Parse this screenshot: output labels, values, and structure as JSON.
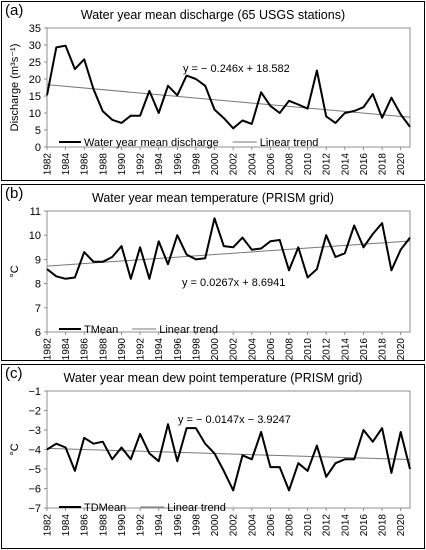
{
  "chart_data": [
    {
      "type": "line",
      "panel_label": "(a)",
      "title": "Water year mean discharge (65 USGS stations)",
      "ylabel": "Discharge (m³s⁻¹)",
      "ylim": [
        0,
        35
      ],
      "yticks": [
        0,
        5,
        10,
        15,
        20,
        25,
        30,
        35
      ],
      "xlim": [
        1982,
        2021
      ],
      "xticks": [
        1982,
        1984,
        1986,
        1988,
        1990,
        1992,
        1994,
        1996,
        1998,
        2000,
        2002,
        2004,
        2006,
        2008,
        2010,
        2012,
        2014,
        2016,
        2018,
        2020
      ],
      "x": [
        1982,
        1983,
        1984,
        1985,
        1986,
        1987,
        1988,
        1989,
        1990,
        1991,
        1992,
        1993,
        1994,
        1995,
        1996,
        1997,
        1998,
        1999,
        2000,
        2001,
        2002,
        2003,
        2004,
        2005,
        2006,
        2007,
        2008,
        2009,
        2010,
        2011,
        2012,
        2013,
        2014,
        2015,
        2016,
        2017,
        2018,
        2019,
        2020,
        2021
      ],
      "series": [
        {
          "name": "Water year mean discharge",
          "values": [
            15.2,
            29.3,
            29.8,
            22.9,
            25.8,
            17.0,
            10.5,
            8.0,
            7.1,
            9.2,
            9.2,
            16.5,
            10.0,
            18.0,
            15.2,
            21.0,
            20.0,
            18.0,
            11.0,
            8.5,
            5.5,
            7.8,
            6.8,
            16.1,
            12.1,
            10.0,
            13.6,
            12.5,
            11.3,
            22.5,
            9.0,
            7.1,
            10.0,
            10.6,
            11.7,
            15.6,
            8.6,
            14.5,
            9.6,
            5.9
          ]
        }
      ],
      "trend": {
        "name": "Linear trend",
        "equation": "y = − 0.246x + 18.582",
        "slope": -0.246,
        "intercept": 18.582
      },
      "legend_position": "bottom-left",
      "grid": false
    },
    {
      "type": "line",
      "panel_label": "(b)",
      "title": "Water year mean temperature (PRISM grid)",
      "ylabel": "°C",
      "ylim": [
        6,
        11
      ],
      "yticks": [
        6,
        7,
        8,
        9,
        10,
        11
      ],
      "xlim": [
        1982,
        2021
      ],
      "xticks": [
        1982,
        1984,
        1986,
        1988,
        1990,
        1992,
        1994,
        1996,
        1998,
        2000,
        2002,
        2004,
        2006,
        2008,
        2010,
        2012,
        2014,
        2016,
        2018,
        2020
      ],
      "x": [
        1982,
        1983,
        1984,
        1985,
        1986,
        1987,
        1988,
        1989,
        1990,
        1991,
        1992,
        1993,
        1994,
        1995,
        1996,
        1997,
        1998,
        1999,
        2000,
        2001,
        2002,
        2003,
        2004,
        2005,
        2006,
        2007,
        2008,
        2009,
        2010,
        2011,
        2012,
        2013,
        2014,
        2015,
        2016,
        2017,
        2018,
        2019,
        2020,
        2021
      ],
      "series": [
        {
          "name": "TMean",
          "values": [
            8.6,
            8.3,
            8.2,
            8.25,
            9.3,
            8.9,
            8.9,
            9.1,
            9.55,
            8.2,
            9.5,
            8.2,
            9.75,
            8.8,
            10.0,
            9.2,
            9.0,
            9.05,
            10.7,
            9.55,
            9.5,
            9.9,
            9.4,
            9.45,
            9.75,
            9.8,
            8.55,
            9.5,
            8.25,
            8.6,
            10.0,
            9.1,
            9.25,
            10.4,
            9.5,
            10.05,
            10.5,
            8.55,
            9.4,
            9.9
          ]
        }
      ],
      "trend": {
        "name": "Linear trend",
        "equation": "y = 0.0267x + 8.6941",
        "slope": 0.0267,
        "intercept": 8.6941
      },
      "legend_position": "bottom-left",
      "grid": false
    },
    {
      "type": "line",
      "panel_label": "(c)",
      "title": "Water year mean dew point temperature (PRISM grid)",
      "ylabel": "°C",
      "ylim": [
        -7,
        -1
      ],
      "yticks": [
        -7,
        -6,
        -5,
        -4,
        -3,
        -2,
        -1
      ],
      "xlim": [
        1982,
        2021
      ],
      "xticks": [
        1982,
        1984,
        1986,
        1988,
        1990,
        1992,
        1994,
        1996,
        1998,
        2000,
        2002,
        2004,
        2006,
        2008,
        2010,
        2012,
        2014,
        2016,
        2018,
        2020
      ],
      "x": [
        1982,
        1983,
        1984,
        1985,
        1986,
        1987,
        1988,
        1989,
        1990,
        1991,
        1992,
        1993,
        1994,
        1995,
        1996,
        1997,
        1998,
        1999,
        2000,
        2001,
        2002,
        2003,
        2004,
        2005,
        2006,
        2007,
        2008,
        2009,
        2010,
        2011,
        2012,
        2013,
        2014,
        2015,
        2016,
        2017,
        2018,
        2019,
        2020,
        2021
      ],
      "series": [
        {
          "name": "TDMean",
          "values": [
            -4.0,
            -3.7,
            -3.9,
            -5.1,
            -3.4,
            -3.7,
            -3.6,
            -4.5,
            -3.9,
            -4.5,
            -3.2,
            -4.2,
            -4.6,
            -2.7,
            -4.6,
            -2.9,
            -2.9,
            -3.7,
            -4.2,
            -5.1,
            -6.1,
            -4.3,
            -4.5,
            -3.1,
            -4.9,
            -4.9,
            -6.1,
            -4.7,
            -5.1,
            -3.8,
            -5.4,
            -4.7,
            -4.5,
            -4.5,
            -3.0,
            -3.6,
            -2.9,
            -5.2,
            -3.1,
            -5.0
          ]
        }
      ],
      "trend": {
        "name": "Linear trend",
        "equation": "y = − 0.0147x − 3.9247",
        "slope": -0.0147,
        "intercept": -3.9247
      },
      "legend_position": "bottom-left",
      "grid": false
    }
  ]
}
